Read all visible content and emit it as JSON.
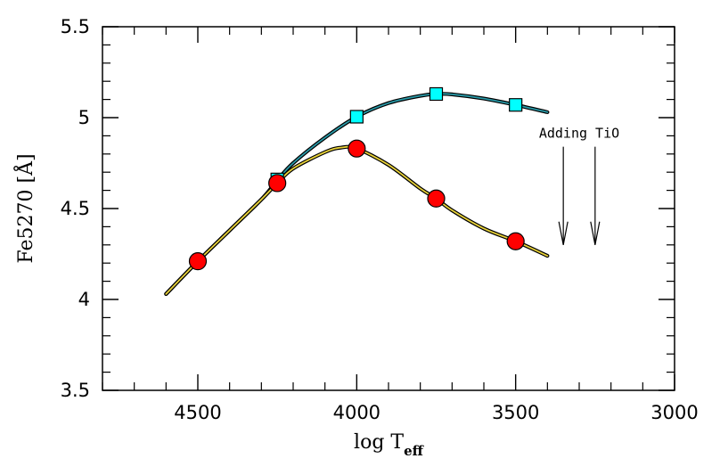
{
  "chart_data": {
    "type": "line",
    "xlabel_main": "log T",
    "xlabel_sub": "eff",
    "ylabel": "Fe5270 [Å]",
    "xlim": [
      4800,
      3000
    ],
    "ylim": [
      3.5,
      5.5
    ],
    "xticks": [
      4500,
      4000,
      3500,
      3000
    ],
    "xtick_labels": [
      "4500",
      "4000",
      "3500",
      "3000"
    ],
    "yticks": [
      3.5,
      4,
      4.5,
      5,
      5.5
    ],
    "ytick_labels": [
      "3.5",
      "4",
      "4.5",
      "5",
      "5.5"
    ],
    "grid": false,
    "series": [
      {
        "marker": "square",
        "line_color": "#2a9aa8",
        "marker_color": "#00ffff",
        "curve": [
          [
            4600,
            4.03
          ],
          [
            4500,
            4.21
          ],
          [
            4400,
            4.38
          ],
          [
            4300,
            4.55
          ],
          [
            4250,
            4.655
          ],
          [
            4200,
            4.75
          ],
          [
            4100,
            4.89
          ],
          [
            4000,
            5.005
          ],
          [
            3900,
            5.08
          ],
          [
            3800,
            5.12
          ],
          [
            3750,
            5.13
          ],
          [
            3700,
            5.128
          ],
          [
            3600,
            5.105
          ],
          [
            3500,
            5.07
          ],
          [
            3400,
            5.03
          ]
        ],
        "points": [
          [
            4250,
            4.66
          ],
          [
            4000,
            5.005
          ],
          [
            3750,
            5.13
          ],
          [
            3500,
            5.07
          ]
        ]
      },
      {
        "marker": "circle",
        "line_color": "#e8d23a",
        "marker_color": "#ff0000",
        "curve": [
          [
            4600,
            4.03
          ],
          [
            4500,
            4.21
          ],
          [
            4400,
            4.38
          ],
          [
            4300,
            4.55
          ],
          [
            4250,
            4.64
          ],
          [
            4200,
            4.72
          ],
          [
            4100,
            4.81
          ],
          [
            4050,
            4.835
          ],
          [
            4000,
            4.83
          ],
          [
            3900,
            4.74
          ],
          [
            3800,
            4.61
          ],
          [
            3750,
            4.555
          ],
          [
            3700,
            4.49
          ],
          [
            3600,
            4.39
          ],
          [
            3500,
            4.32
          ],
          [
            3400,
            4.24
          ]
        ],
        "points": [
          [
            4500,
            4.21
          ],
          [
            4250,
            4.64
          ],
          [
            4000,
            4.83
          ],
          [
            3750,
            4.555
          ],
          [
            3500,
            4.32
          ]
        ]
      }
    ],
    "annotation": {
      "text": "Adding TiO",
      "arrows": [
        {
          "x": 3350,
          "y_start": 4.84,
          "y_end": 4.3
        },
        {
          "x": 3250,
          "y_start": 4.84,
          "y_end": 4.3
        }
      ]
    }
  }
}
